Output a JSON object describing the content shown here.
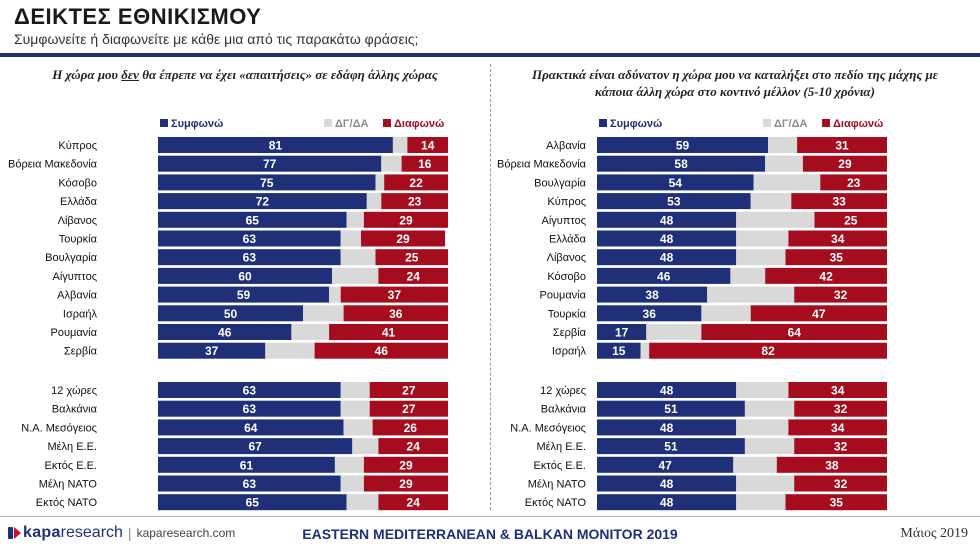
{
  "header": {
    "title": "ΔΕΙΚΤΕΣ ΕΘΝΙΚΙΣΜΟΥ",
    "subtitle": "Συμφωνείτε ή διαφωνείτε με κάθε μια από τις παρακάτω φράσεις;"
  },
  "colors": {
    "agree": "#1f2f78",
    "neutral": "#d9d9d9",
    "disagree": "#a50d1f",
    "accent_rule": "#1f2f78"
  },
  "chart_data": [
    {
      "type": "bar",
      "orientation": "horizontal-stacked",
      "title_parts": [
        "Η χώρα μου ",
        "δεν",
        " θα έπρεπε να έχει «απαιτήσεις» σε εδάφη άλλης χώρας"
      ],
      "legend": [
        "Συμφωνώ",
        "ΔΓ/ΔΑ",
        "Διαφωνώ"
      ],
      "legend_placement": "top",
      "categories": [
        "Κύπρος",
        "Βόρεια Μακεδονία",
        "Κόσοβο",
        "Ελλάδα",
        "Λίβανος",
        "Τουρκία",
        "Βουλγαρία",
        "Αίγυπτος",
        "Αλβανία",
        "Ισραήλ",
        "Ρουμανία",
        "Σερβία"
      ],
      "series": [
        {
          "name": "Συμφωνώ",
          "values": [
            81,
            77,
            75,
            72,
            65,
            63,
            63,
            60,
            59,
            50,
            46,
            37
          ]
        },
        {
          "name": "ΔΓ/ΔΑ",
          "values": [
            5,
            7,
            3,
            5,
            6,
            7,
            12,
            16,
            4,
            14,
            13,
            17
          ]
        },
        {
          "name": "Διαφωνώ",
          "values": [
            14,
            16,
            22,
            23,
            29,
            29,
            25,
            24,
            37,
            36,
            41,
            46
          ]
        }
      ],
      "group_categories": [
        "12 χώρες",
        "Βαλκάνια",
        "Ν.Α. Μεσόγειος",
        "Μέλη Ε.Ε.",
        "Εκτός Ε.Ε.",
        "Μέλη ΝΑΤΟ",
        "Εκτός ΝΑΤΟ"
      ],
      "group_series": [
        {
          "name": "Συμφωνώ",
          "values": [
            63,
            63,
            64,
            67,
            61,
            63,
            65
          ]
        },
        {
          "name": "ΔΓ/ΔΑ",
          "values": [
            10,
            10,
            10,
            9,
            10,
            8,
            11
          ]
        },
        {
          "name": "Διαφωνώ",
          "values": [
            27,
            27,
            26,
            24,
            29,
            29,
            24
          ]
        }
      ],
      "xlim": [
        0,
        100
      ]
    },
    {
      "type": "bar",
      "orientation": "horizontal-stacked",
      "title_parts": [
        "Πρακτικά είναι αδύνατον η χώρα μου να καταλήξει στο πεδίο της μάχης με κάποια άλλη χώρα στο κοντινό μέλλον (5-10 χρόνια)"
      ],
      "legend": [
        "Συμφωνώ",
        "ΔΓ/ΔΑ",
        "Διαφωνώ"
      ],
      "legend_placement": "top",
      "categories": [
        "Αλβανία",
        "Βόρεια Μακεδονία",
        "Βουλγαρία",
        "Κύπρος",
        "Αίγυπτος",
        "Ελλάδα",
        "Λίβανος",
        "Κόσοβο",
        "Ρουμανία",
        "Τουρκία",
        "Σερβία",
        "Ισραήλ"
      ],
      "series": [
        {
          "name": "Συμφωνώ",
          "values": [
            59,
            58,
            54,
            53,
            48,
            48,
            48,
            46,
            38,
            36,
            17,
            15
          ]
        },
        {
          "name": "ΔΓ/ΔΑ",
          "values": [
            10,
            13,
            23,
            14,
            27,
            18,
            17,
            12,
            30,
            17,
            19,
            3
          ]
        },
        {
          "name": "Διαφωνώ",
          "values": [
            31,
            29,
            23,
            33,
            25,
            34,
            35,
            42,
            32,
            47,
            64,
            82
          ]
        }
      ],
      "group_categories": [
        "12 χώρες",
        "Βαλκάνια",
        "Ν.Α. Μεσόγειος",
        "Μέλη Ε.Ε.",
        "Εκτός Ε.Ε.",
        "Μέλη ΝΑΤΟ",
        "Εκτός ΝΑΤΟ"
      ],
      "group_series": [
        {
          "name": "Συμφωνώ",
          "values": [
            48,
            51,
            48,
            51,
            47,
            48,
            48
          ]
        },
        {
          "name": "ΔΓ/ΔΑ",
          "values": [
            18,
            17,
            18,
            17,
            15,
            20,
            17
          ]
        },
        {
          "name": "Διαφωνώ",
          "values": [
            34,
            32,
            34,
            32,
            38,
            32,
            35
          ]
        }
      ],
      "xlim": [
        0,
        100
      ]
    }
  ],
  "footer": {
    "brand_bold": "kapa",
    "brand_light": "research",
    "separator": "|",
    "site": "kaparesearch.com",
    "center": "EASTERN MEDITERRANEAN & BALKAN MONITOR 2019",
    "date": "Μάιος 2019"
  }
}
